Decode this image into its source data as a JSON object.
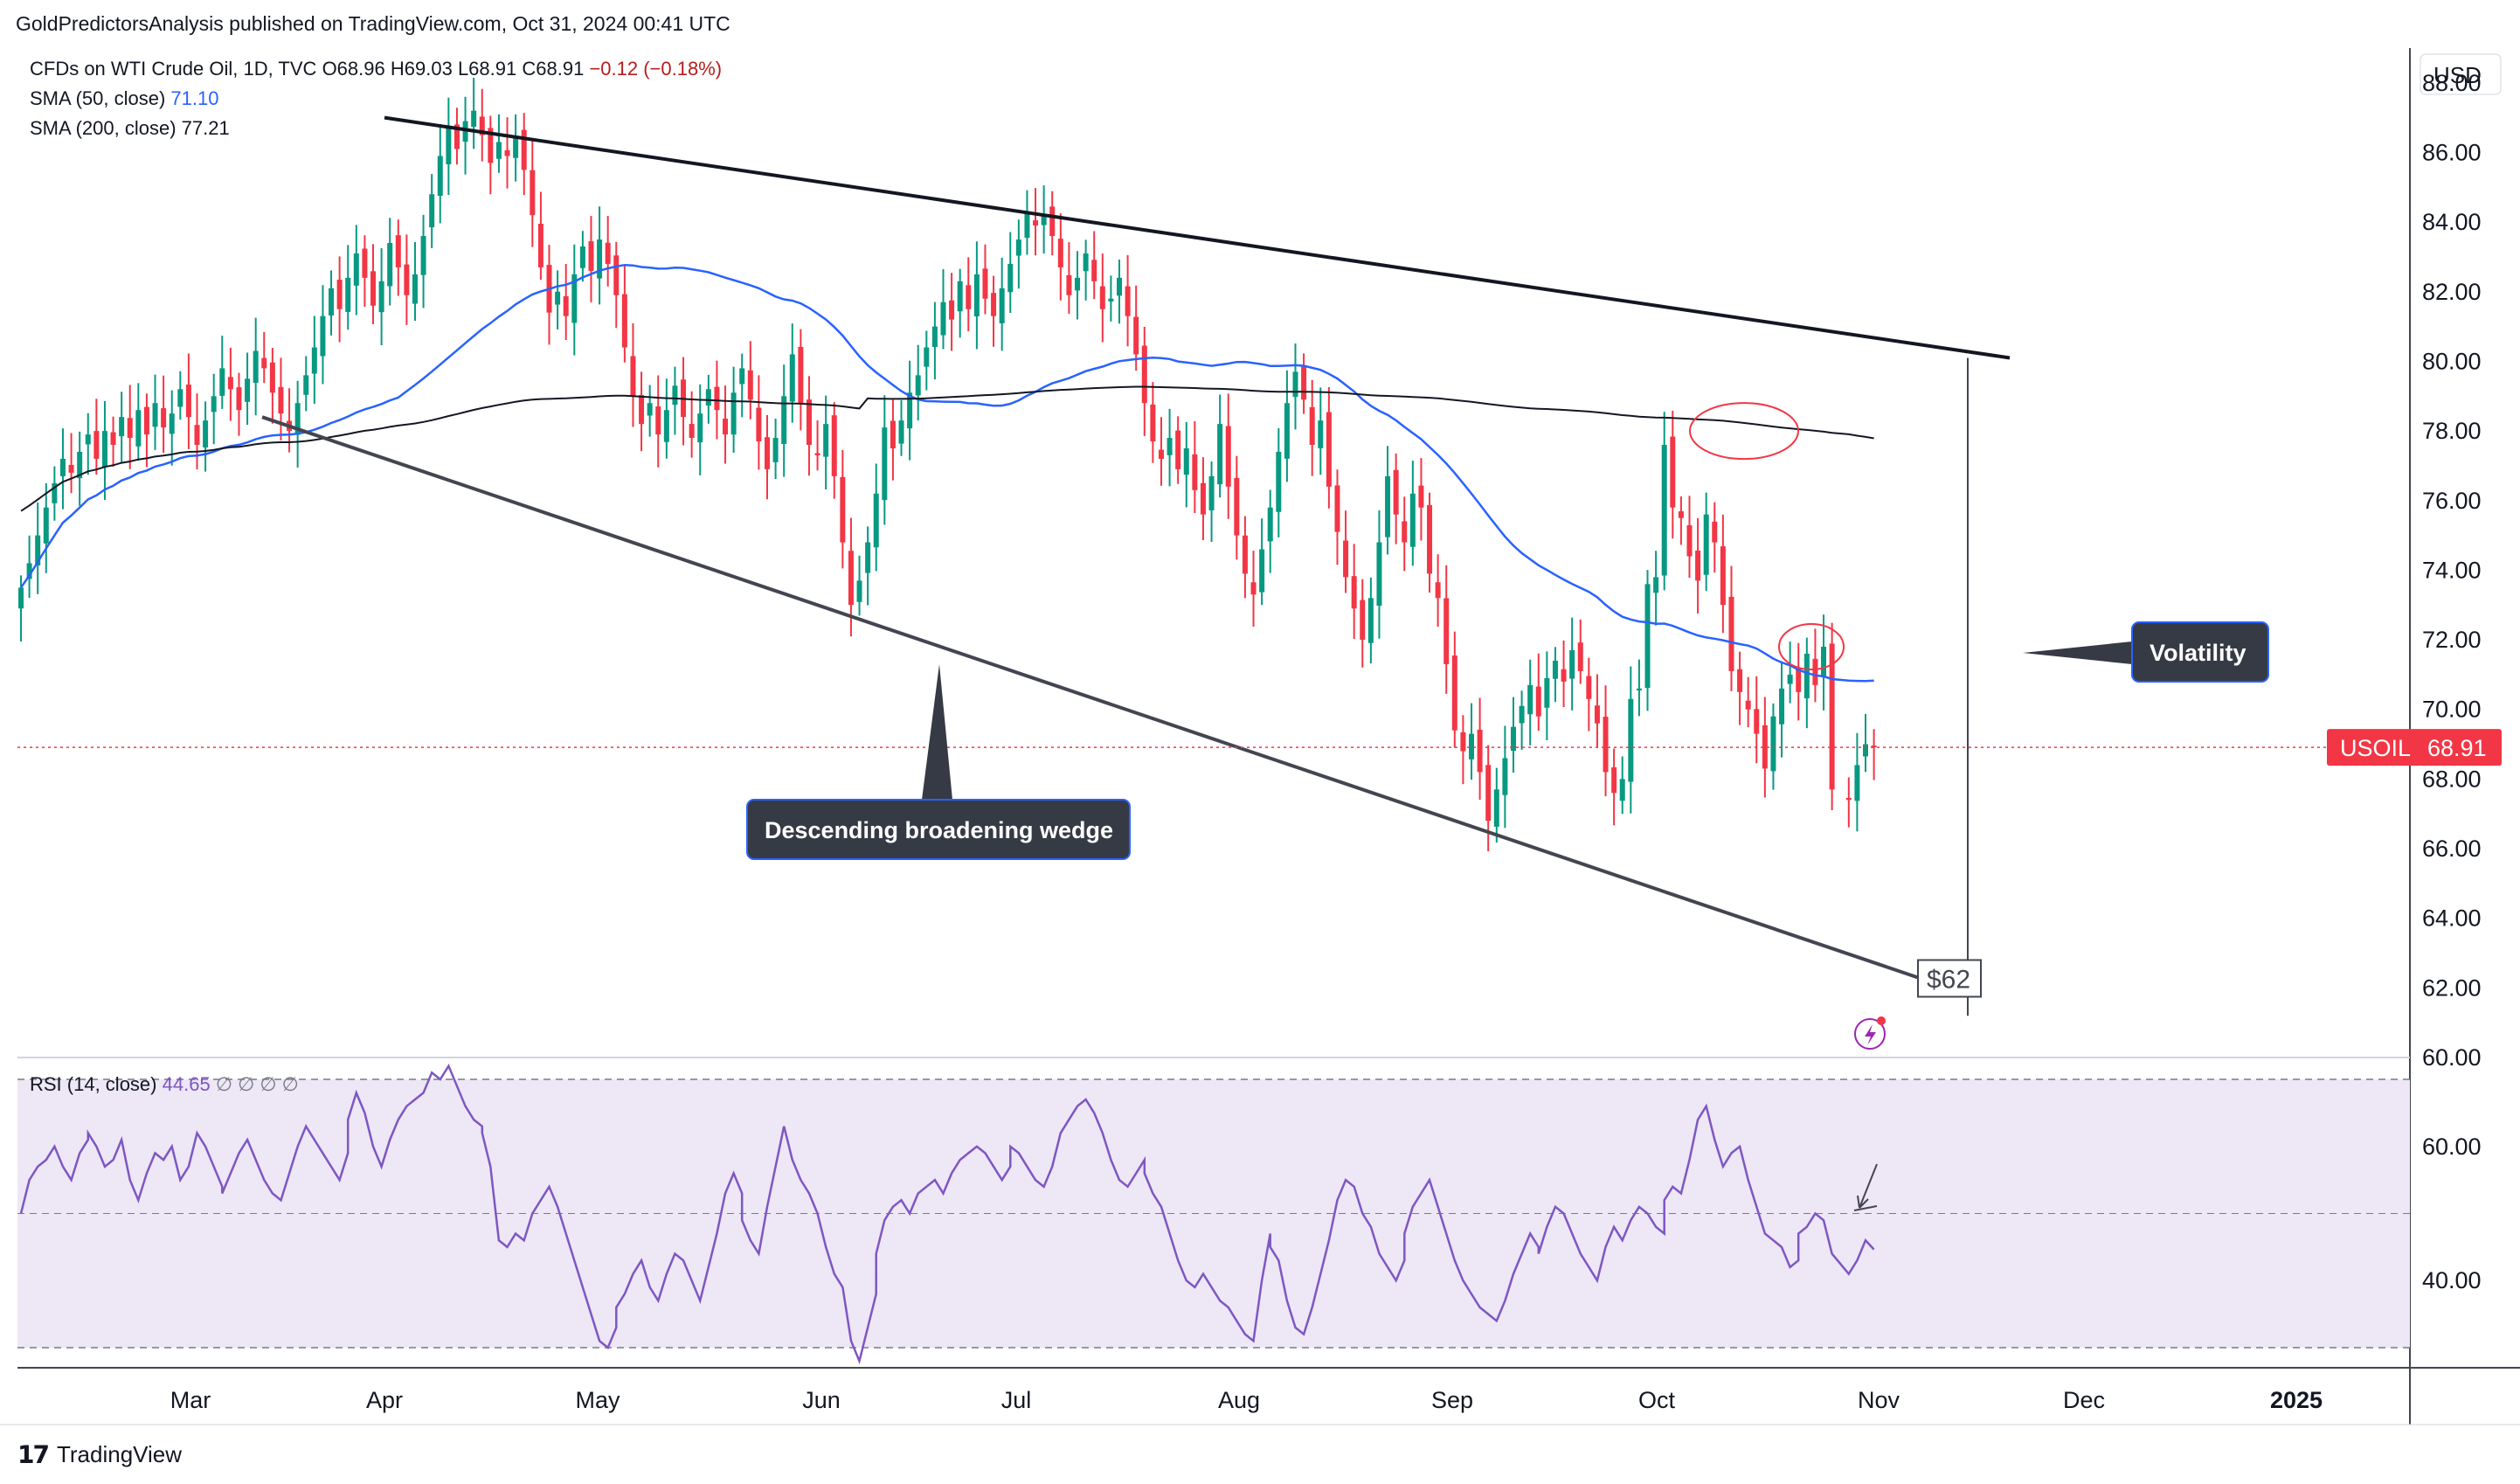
{
  "header": {
    "publisher_line": "GoldPredictorsAnalysis published on TradingView.com, Oct 31, 2024 00:41 UTC"
  },
  "legend": {
    "symbol_line": "CFDs on WTI Crude Oil, 1D, TVC",
    "open": "O68.96",
    "high": "H69.03",
    "low": "L68.91",
    "close": "C68.91",
    "change": "−0.12 (−0.18%)",
    "sma50_label": "SMA (50, close)",
    "sma50_value": "71.10",
    "sma200_label": "SMA (200, close)",
    "sma200_value": "77.21"
  },
  "currency": "USD",
  "price_tag": {
    "symbol": "USOIL",
    "value": "68.91",
    "color": "#f23645"
  },
  "annotations": {
    "wedge_label": "Descending broadening wedge",
    "volatility_label": "Volatility",
    "target_label": "$62"
  },
  "rsi_legend": {
    "label": "RSI (14, close)",
    "value": "44.65",
    "extras": "∅  ∅  ∅  ∅"
  },
  "footer": {
    "brand": "TradingView"
  },
  "colors": {
    "up": "#089981",
    "down": "#f23645",
    "sma50": "#2962ff",
    "sma200": "#131722",
    "rsi": "#7e57c2",
    "rsi_band": "#ede7f6"
  },
  "chart_data": [
    {
      "type": "candlestick",
      "title": "CFDs on WTI Crude Oil, 1D, TVC",
      "x_labels": [
        "Mar",
        "Apr",
        "May",
        "Jun",
        "Jul",
        "Aug",
        "Sep",
        "Oct",
        "Nov",
        "Dec",
        "2025"
      ],
      "y_ticks": [
        "88.00",
        "86.00",
        "84.00",
        "82.00",
        "80.00",
        "78.00",
        "76.00",
        "74.00",
        "72.00",
        "70.00",
        "68.00",
        "66.00",
        "64.00",
        "62.00",
        "60.00"
      ],
      "ylim": [
        60,
        89
      ],
      "last_close": 68.91,
      "closes_approx": [
        73.5,
        74.2,
        75.0,
        75.8,
        76.5,
        77.2,
        76.8,
        77.4,
        77.9,
        77.2,
        78.0,
        77.6,
        78.4,
        77.8,
        78.6,
        77.9,
        78.8,
        78.1,
        78.5,
        79.2,
        78.4,
        77.6,
        78.3,
        79.0,
        79.8,
        79.2,
        78.6,
        79.5,
        80.3,
        79.8,
        79.1,
        78.5,
        78.0,
        78.8,
        79.6,
        80.4,
        81.3,
        82.1,
        81.5,
        82.4,
        83.1,
        82.4,
        81.6,
        82.3,
        83.4,
        82.7,
        81.9,
        82.5,
        83.6,
        84.8,
        85.9,
        86.7,
        86.1,
        86.9,
        87.2,
        86.5,
        85.7,
        86.3,
        85.9,
        86.4,
        85.5,
        84.2,
        82.7,
        81.4,
        82.0,
        81.3,
        82.5,
        83.3,
        82.6,
        83.5,
        82.8,
        81.9,
        80.4,
        79.0,
        78.2,
        78.8,
        77.9,
        78.6,
        79.3,
        78.4,
        77.8,
        78.5,
        79.2,
        78.6,
        77.9,
        79.1,
        79.8,
        78.9,
        77.7,
        76.9,
        77.8,
        79.0,
        80.2,
        78.8,
        77.6,
        77.3,
        78.2,
        76.7,
        74.8,
        73.0,
        73.7,
        74.8,
        76.2,
        78.1,
        77.5,
        78.3,
        79.1,
        79.6,
        80.4,
        81.0,
        81.7,
        81.2,
        82.3,
        81.5,
        82.5,
        81.8,
        81.3,
        82.1,
        82.8,
        83.5,
        84.3,
        83.9,
        84.2,
        83.6,
        82.7,
        81.9,
        82.4,
        83.1,
        82.3,
        81.5,
        81.8,
        82.4,
        81.3,
        80.2,
        78.8,
        77.7,
        77.2,
        77.8,
        76.9,
        77.5,
        76.3,
        75.6,
        76.7,
        78.2,
        76.4,
        75.0,
        73.9,
        73.3,
        74.6,
        75.8,
        77.4,
        78.8,
        79.7,
        78.9,
        77.6,
        78.3,
        76.4,
        75.1,
        73.8,
        72.9,
        72.0,
        73.2,
        74.8,
        76.7,
        75.6,
        74.8,
        76.2,
        75.8,
        73.9,
        73.2,
        71.3,
        69.4,
        68.8,
        69.3,
        68.2,
        66.8,
        67.7,
        68.6,
        69.5,
        70.1,
        70.7,
        69.8,
        70.9,
        71.4,
        70.8,
        71.7,
        71.1,
        70.3,
        69.6,
        68.2,
        67.6,
        68.0,
        70.3,
        70.6,
        73.6,
        73.8,
        77.6,
        75.8,
        75.5,
        74.4,
        73.7,
        75.6,
        74.8,
        73.0,
        71.1,
        70.5,
        70.0,
        69.3,
        68.3,
        69.8,
        70.6,
        71.0,
        70.5,
        71.6,
        70.7,
        71.8,
        67.7,
        67.4,
        68.4,
        69.0,
        68.91
      ],
      "sma50_approx": {
        "from": 73.5,
        "peak": 81.9,
        "mid_low": 77.5,
        "jul_high": 78.7,
        "end": 71.1
      },
      "sma200_approx": {
        "from": 77.5,
        "peak": 80.1,
        "end": 77.21
      },
      "trendlines": [
        {
          "name": "upper",
          "from_price": 87.0,
          "to_price": 80.1
        },
        {
          "name": "lower",
          "from_price": 78.4,
          "to_price": 62.0
        }
      ]
    },
    {
      "type": "line",
      "title": "RSI (14, close)",
      "y_ticks": [
        "60.00",
        "40.00"
      ],
      "ylim": [
        27,
        73
      ],
      "band": [
        30,
        70
      ],
      "midline": 50,
      "last_value": 44.65,
      "values_approx": [
        50,
        55,
        57,
        58,
        60,
        57,
        55,
        59,
        61,
        62,
        60,
        57,
        58,
        61,
        55,
        52,
        56,
        59,
        58,
        60,
        55,
        57,
        62,
        60,
        57,
        54,
        53,
        56,
        59,
        61,
        58,
        55,
        53,
        52,
        56,
        60,
        63,
        61,
        59,
        57,
        55,
        59,
        64,
        68,
        65,
        60,
        57,
        61,
        64,
        66,
        67,
        68,
        71,
        70,
        72,
        69,
        66,
        64,
        63,
        62,
        57,
        46,
        45,
        47,
        46,
        50,
        52,
        54,
        51,
        47,
        43,
        39,
        35,
        31,
        30,
        33,
        36,
        38,
        41,
        43,
        39,
        37,
        41,
        44,
        43,
        40,
        37,
        42,
        47,
        53,
        56,
        53,
        49,
        46,
        44,
        51,
        57,
        63,
        58,
        55,
        53,
        50,
        45,
        41,
        39,
        31,
        28,
        33,
        38,
        44,
        49,
        51,
        52,
        50,
        53,
        54,
        55,
        53,
        56,
        58,
        59,
        60,
        59,
        57,
        55,
        57,
        60,
        59,
        57,
        55,
        54,
        57,
        62,
        64,
        66,
        67,
        65,
        62,
        58,
        55,
        54,
        56,
        58,
        56,
        53,
        51,
        47,
        43,
        40,
        39,
        41,
        39,
        37,
        36,
        34,
        32,
        31,
        40,
        47,
        45,
        43,
        37,
        33,
        32,
        36,
        41,
        46,
        52,
        55,
        54,
        50,
        48,
        44,
        42,
        40,
        43,
        47,
        51,
        53,
        55,
        51,
        47,
        43,
        40,
        38,
        36,
        35,
        34,
        37,
        41,
        44,
        47,
        45,
        44,
        48,
        51,
        50,
        47,
        44,
        42,
        40,
        45,
        48,
        46,
        49,
        51,
        50,
        48,
        47,
        52,
        54,
        53,
        58,
        64,
        66,
        61,
        57,
        59,
        60,
        55,
        51,
        47,
        46,
        45,
        42,
        43,
        47,
        48,
        50,
        49,
        44,
        41,
        43,
        46,
        44.65
      ]
    }
  ]
}
